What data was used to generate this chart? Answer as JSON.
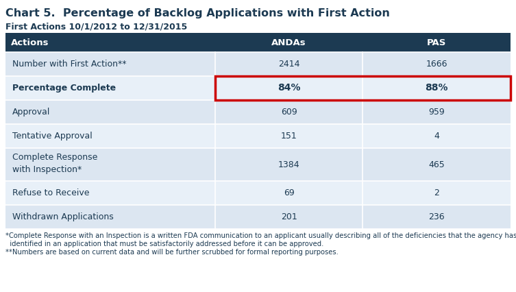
{
  "title": "Chart 5.  Percentage of Backlog Applications with First Action",
  "subtitle": "First Actions 10/1/2012 to 12/31/2015",
  "header_bg": "#1c3a52",
  "header_text_color": "#ffffff",
  "row_bg_odd": "#dce6f1",
  "row_bg_even": "#e8f0f8",
  "col_header": [
    "Actions",
    "ANDAs",
    "PAS"
  ],
  "rows": [
    {
      "label": "Number with First Action**",
      "andas": "2414",
      "pas": "1666",
      "bold": false,
      "highlight": false,
      "multiline": false
    },
    {
      "label": "Percentage Complete",
      "andas": "84%",
      "pas": "88%",
      "bold": true,
      "highlight": true,
      "multiline": false
    },
    {
      "label": "Approval",
      "andas": "609",
      "pas": "959",
      "bold": false,
      "highlight": false,
      "multiline": false
    },
    {
      "label": "Tentative Approval",
      "andas": "151",
      "pas": "4",
      "bold": false,
      "highlight": false,
      "multiline": false
    },
    {
      "label": "Complete Response\nwith Inspection*",
      "andas": "1384",
      "pas": "465",
      "bold": false,
      "highlight": false,
      "multiline": true
    },
    {
      "label": "Refuse to Receive",
      "andas": "69",
      "pas": "2",
      "bold": false,
      "highlight": false,
      "multiline": false
    },
    {
      "label": "Withdrawn Applications",
      "andas": "201",
      "pas": "236",
      "bold": false,
      "highlight": false,
      "multiline": false
    }
  ],
  "footnote1": "*Complete Response with an Inspection is a written FDA communication to an applicant usually describing all of the deficiencies that the agency has",
  "footnote1b": "  identified in an application that must be satisfactorily addressed before it can be approved.",
  "footnote2": "**Numbers are based on current data and will be further scrubbed for formal reporting purposes.",
  "highlight_border_color": "#cc0000",
  "text_color_dark": "#1c3a52",
  "col_proportions": [
    0.415,
    0.2925,
    0.2925
  ]
}
